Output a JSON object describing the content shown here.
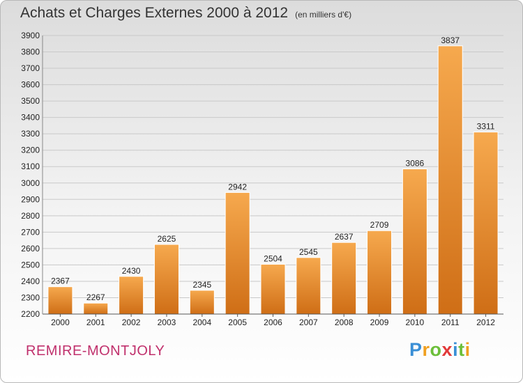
{
  "title": "Achats et Charges Externes 2000 à 2012",
  "subtitle": "(en milliers d'€)",
  "city": "REMIRE-MONTJOLY",
  "logo": {
    "letters": [
      "P",
      "r",
      "o",
      "x",
      "i",
      "t",
      "i"
    ],
    "colors": [
      "#3a8fd6",
      "#f0a020",
      "#6cbf3a",
      "#e23a3a",
      "#3a8fd6",
      "#6cbf3a",
      "#f0a020"
    ]
  },
  "colors": {
    "bar_top": "#f6a94e",
    "bar_bottom": "#cf6e16",
    "grid": "#c9c9c9",
    "city": "#c0306c"
  },
  "chart_data": {
    "type": "bar",
    "categories": [
      "2000",
      "2001",
      "2002",
      "2003",
      "2004",
      "2005",
      "2006",
      "2007",
      "2008",
      "2009",
      "2010",
      "2011",
      "2012"
    ],
    "values": [
      2367,
      2267,
      2430,
      2625,
      2345,
      2942,
      2504,
      2545,
      2637,
      2709,
      3086,
      3837,
      3311
    ],
    "ylim": [
      2200,
      3900
    ],
    "yticks": [
      2200,
      2300,
      2400,
      2500,
      2600,
      2700,
      2800,
      2900,
      3000,
      3100,
      3200,
      3300,
      3400,
      3500,
      3600,
      3700,
      3800,
      3900
    ],
    "grid": true
  }
}
